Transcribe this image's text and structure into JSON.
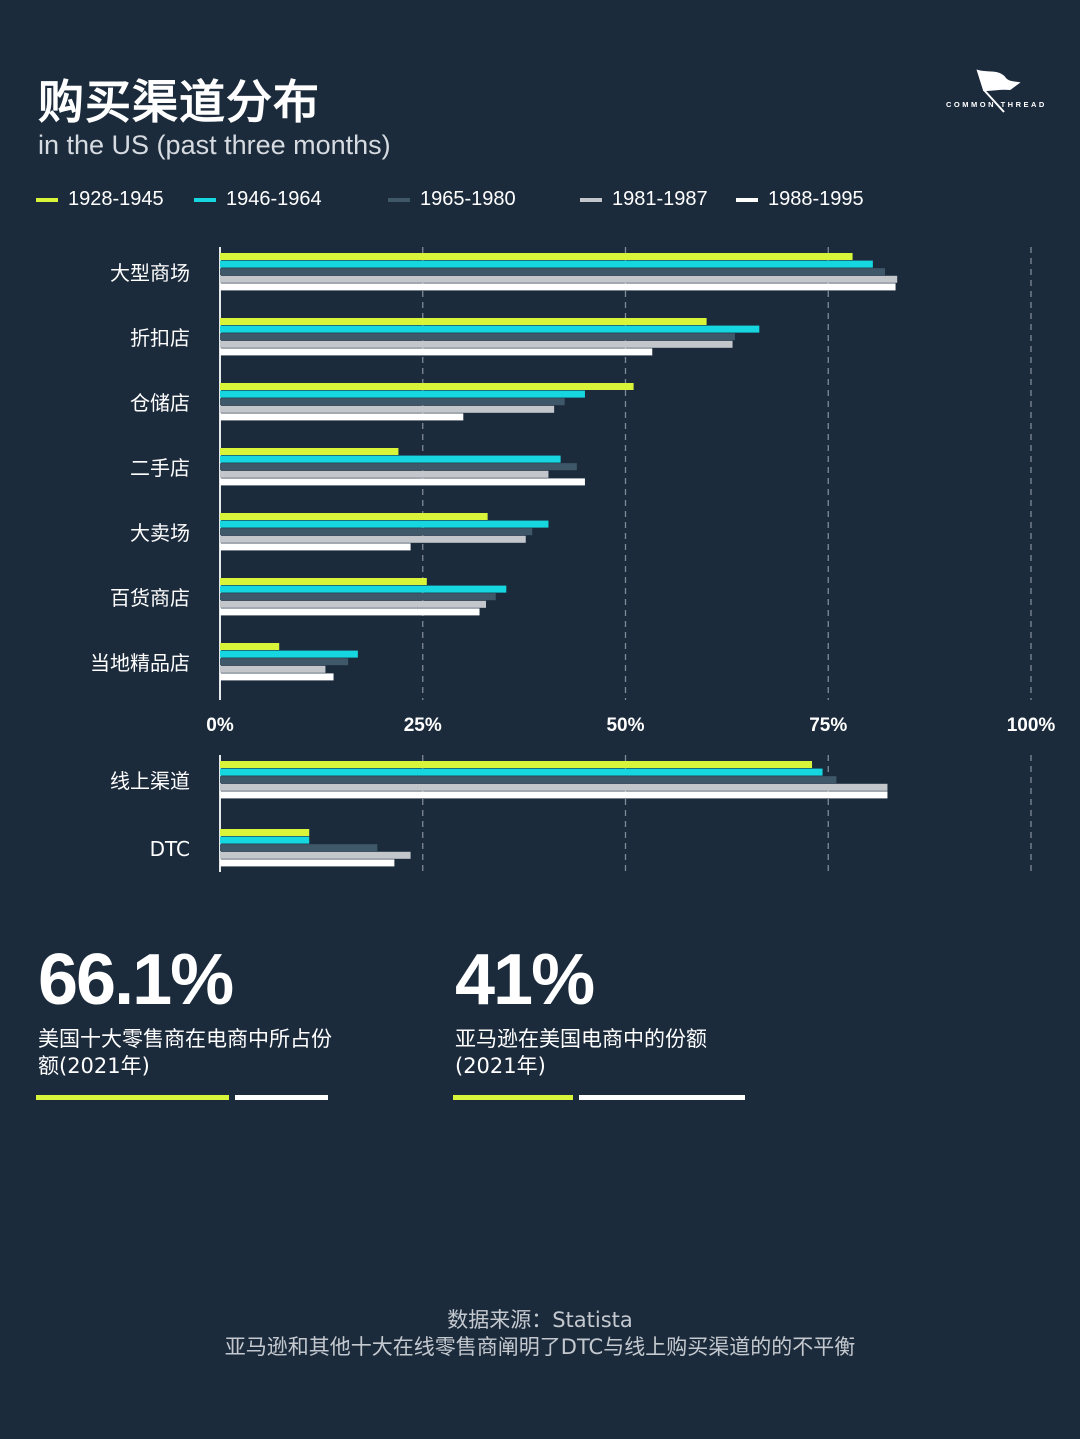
{
  "title": "购买渠道分布",
  "subtitle": "in the US (past three months)",
  "logo": {
    "text": "COMMON THREAD",
    "icon": "flag-icon"
  },
  "colors": {
    "background": "#1c2b3c",
    "series": [
      "#d8f53a",
      "#16d6e0",
      "#3e5869",
      "#c3c7cc",
      "#ffffff"
    ]
  },
  "chart_data": {
    "type": "bar",
    "orientation": "horizontal",
    "xlim": [
      0,
      100
    ],
    "xticks": [
      "0%",
      "25%",
      "50%",
      "75%",
      "100%"
    ],
    "grid": "dashed vertical",
    "legend_position": "top",
    "series_names": [
      "1928-1945",
      "1946-1964",
      "1965-1980",
      "1981-1987",
      "1988-1995"
    ],
    "groups": [
      {
        "categories": [
          "大型商场",
          "折扣店",
          "仓储店",
          "二手店",
          "大卖场",
          "百货商店",
          "当地精品店"
        ],
        "values": [
          [
            78,
            80.5,
            82,
            83.5,
            83.3
          ],
          [
            60,
            66.5,
            63.5,
            63.2,
            53.3
          ],
          [
            51,
            45,
            42.5,
            41.2,
            30
          ],
          [
            22,
            42,
            44,
            40.5,
            45
          ],
          [
            33,
            40.5,
            38.5,
            37.7,
            23.5
          ],
          [
            25.5,
            35.3,
            34,
            32.8,
            32
          ],
          [
            7.3,
            17,
            15.8,
            13,
            14
          ]
        ]
      },
      {
        "categories": [
          "线上渠道",
          "DTC"
        ],
        "values": [
          [
            73,
            74.3,
            76,
            82.3,
            82.3
          ],
          [
            11,
            11,
            19.4,
            23.5,
            21.5
          ]
        ]
      }
    ]
  },
  "stats": [
    {
      "value": "66.1%",
      "desc": "美国十大零售商在电商中所占份额(2021年)",
      "share": 66.1
    },
    {
      "value": "41%",
      "desc": "亚马逊在美国电商中的份额(2021年)",
      "share": 41
    }
  ],
  "footer": {
    "source": "数据来源：Statista",
    "note": "亚马逊和其他十大在线零售商阐明了DTC与线上购买渠道的的不平衡"
  }
}
